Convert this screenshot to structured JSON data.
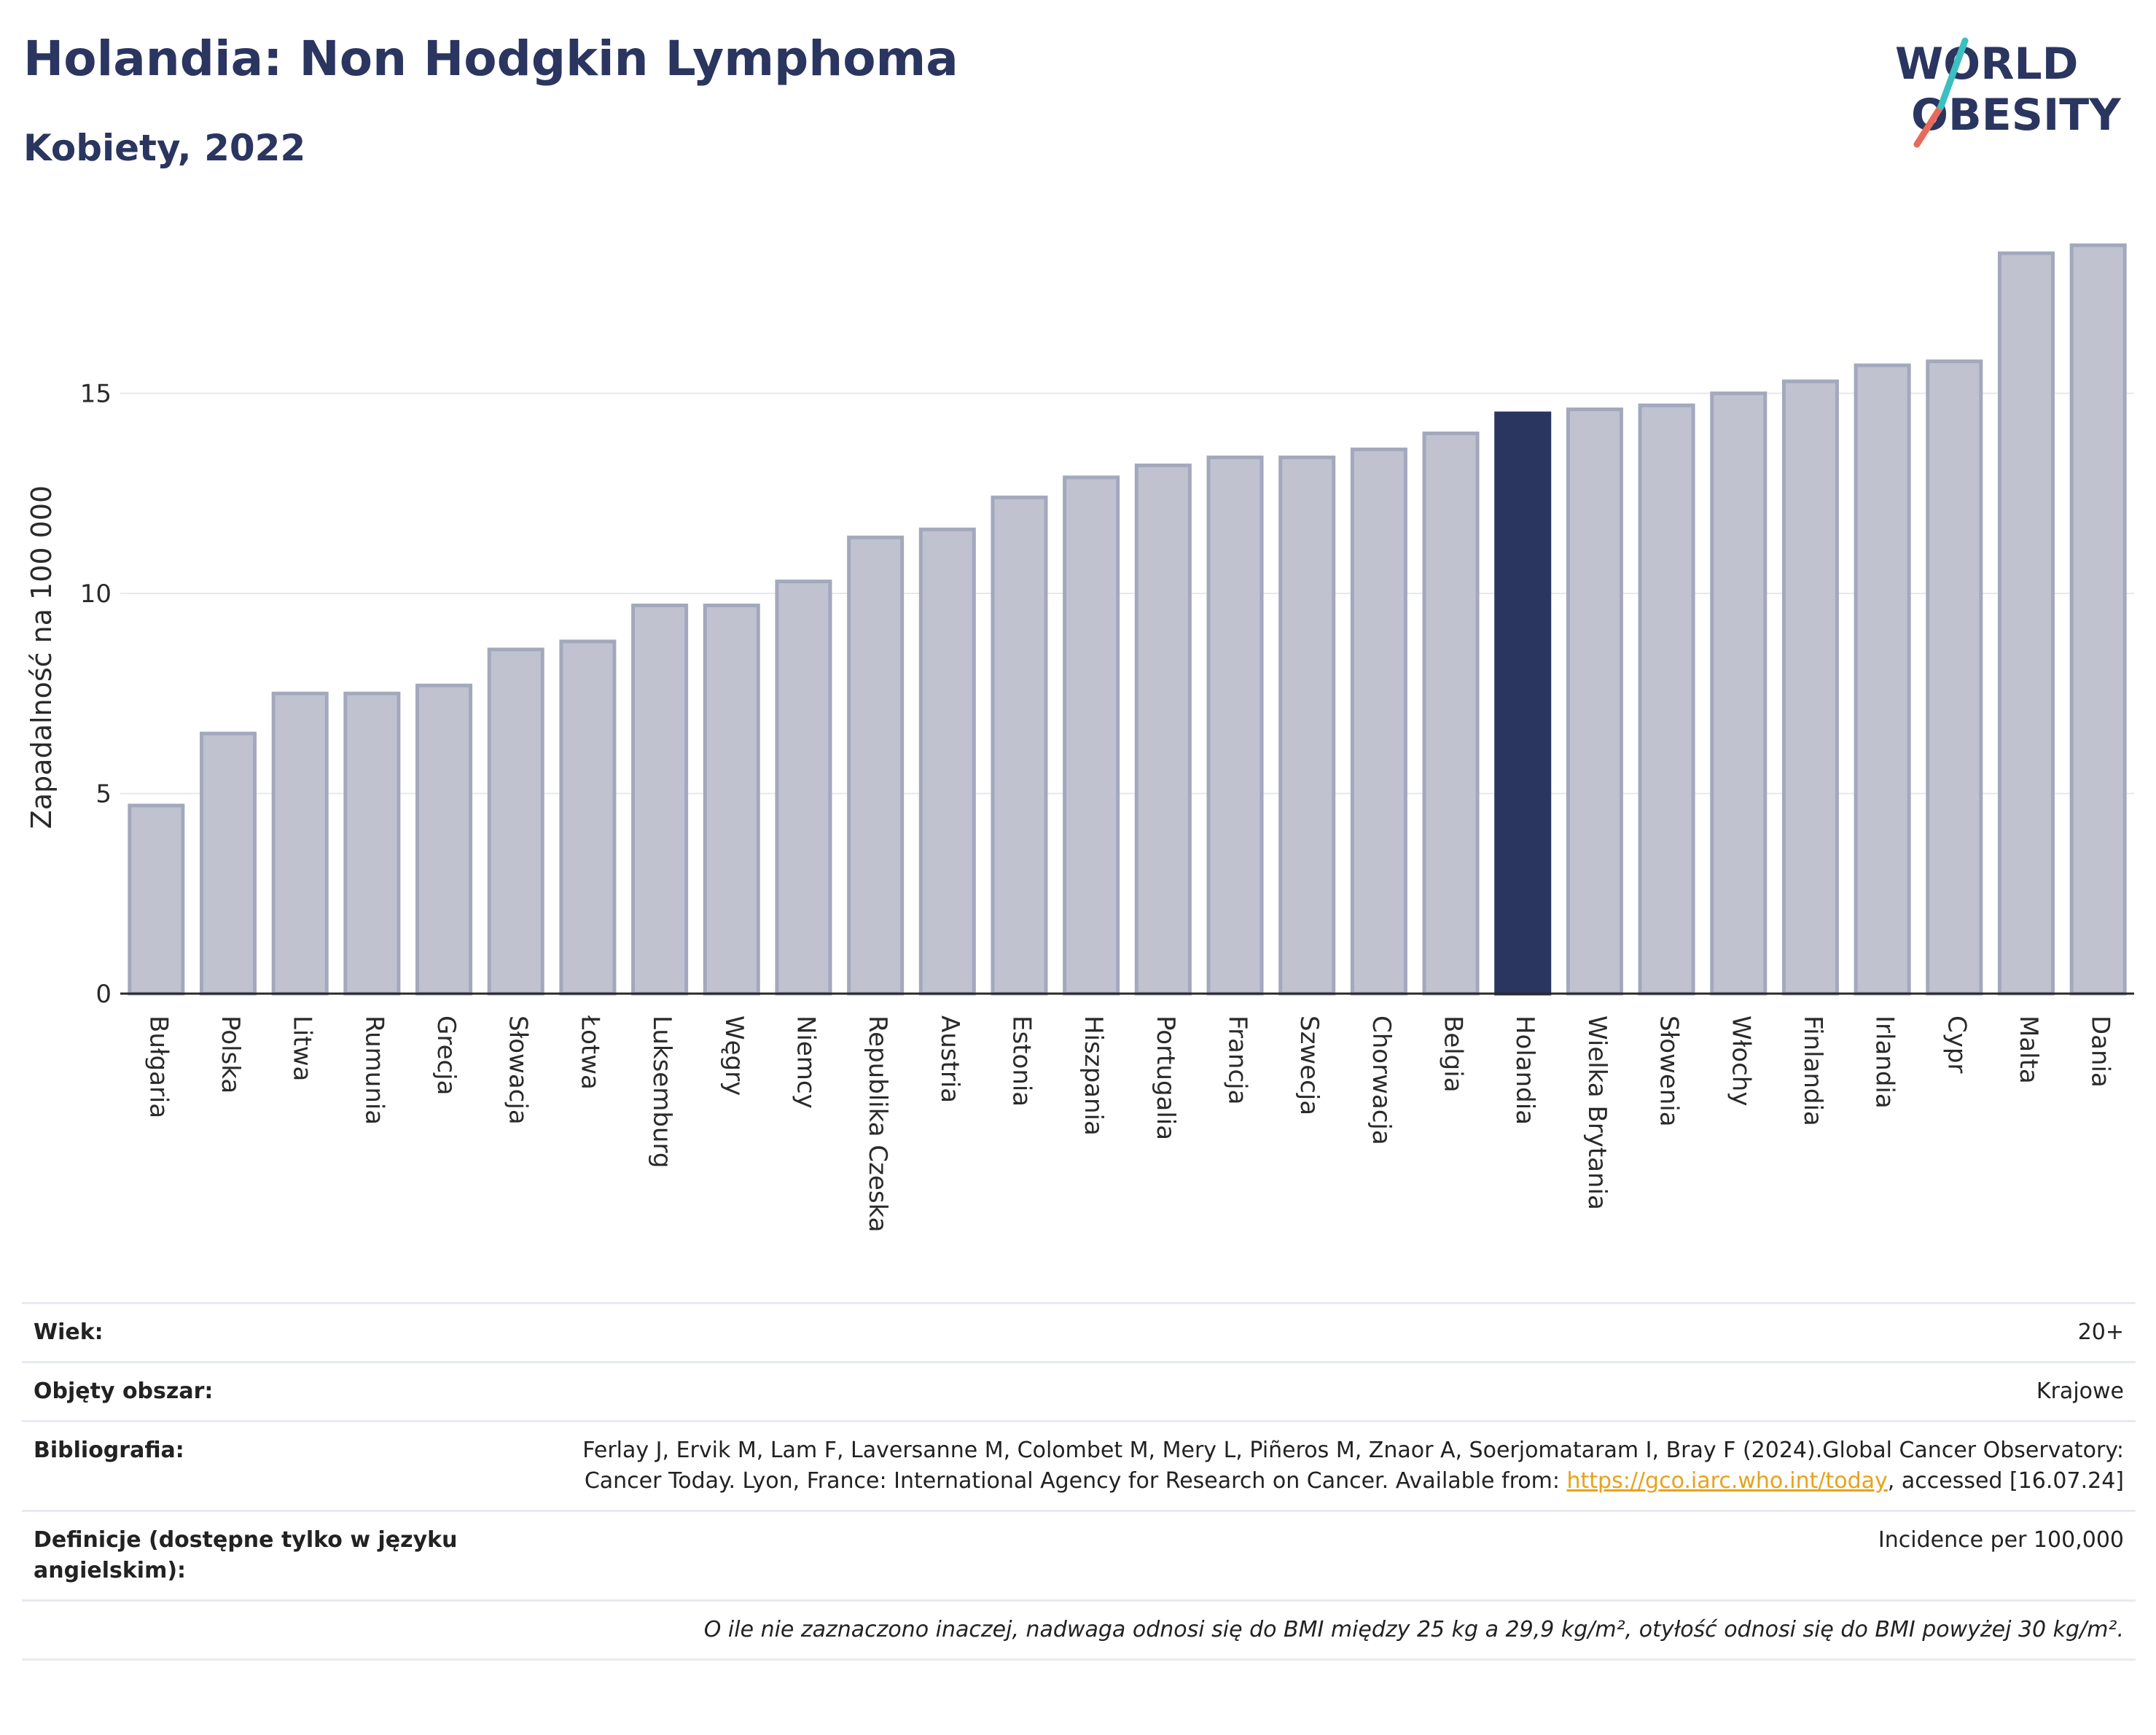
{
  "header": {
    "title": "Holandia: Non Hodgkin Lymphoma",
    "subtitle": "Kobiety, 2022"
  },
  "logo": {
    "line1": "WORLD",
    "line2": "OBESITY"
  },
  "colors": {
    "bar": "#c0c3cf",
    "bar_border": "#a3a8bd",
    "highlight": "#2a3560",
    "text": "#2a3560"
  },
  "chart_data": {
    "type": "bar",
    "ylabel": "Zapadalność na 100 000",
    "xlabel": "",
    "ylim": [
      0,
      19
    ],
    "yticks": [
      0,
      5,
      10,
      15
    ],
    "grid": true,
    "highlight": "Holandia",
    "categories": [
      "Bułgaria",
      "Polska",
      "Litwa",
      "Rumunia",
      "Grecja",
      "Słowacja",
      "Łotwa",
      "Luksemburg",
      "Węgry",
      "Niemcy",
      "Republika Czeska",
      "Austria",
      "Estonia",
      "Hiszpania",
      "Portugalia",
      "Francja",
      "Szwecja",
      "Chorwacja",
      "Belgia",
      "Holandia",
      "Wielka Brytania",
      "Słowenia",
      "Włochy",
      "Finlandia",
      "Irlandia",
      "Cypr",
      "Malta",
      "Dania"
    ],
    "values": [
      4.7,
      6.5,
      7.5,
      7.5,
      7.7,
      8.6,
      8.8,
      9.7,
      9.7,
      10.3,
      11.4,
      11.6,
      12.4,
      12.9,
      13.2,
      13.4,
      13.4,
      13.6,
      14.0,
      14.5,
      14.6,
      14.7,
      15.0,
      15.3,
      15.7,
      15.8,
      18.5,
      18.7
    ]
  },
  "meta": {
    "age_label": "Wiek:",
    "age_value": "20+",
    "area_label": "Objęty obszar:",
    "area_value": "Krajowe",
    "biblio_label": "Bibliografia:",
    "biblio_text": "Ferlay J, Ervik M, Lam F, Laversanne M, Colombet M, Mery L, Piñeros M, Znaor A, Soerjomataram I, Bray F (2024).Global Cancer Observatory: Cancer Today. Lyon, France: International Agency for Research on Cancer. Available from: ",
    "biblio_link": "https://gco.iarc.who.int/today",
    "biblio_tail": ", accessed [16.07.24]",
    "def_label": "Definicje (dostępne tylko w języku angielskim):",
    "def_value": "Incidence per 100,000",
    "note": "O ile nie zaznaczono inaczej, nadwaga odnosi się do BMI między 25 kg a 29,9 kg/m², otyłość odnosi się do BMI powyżej 30 kg/m²."
  }
}
